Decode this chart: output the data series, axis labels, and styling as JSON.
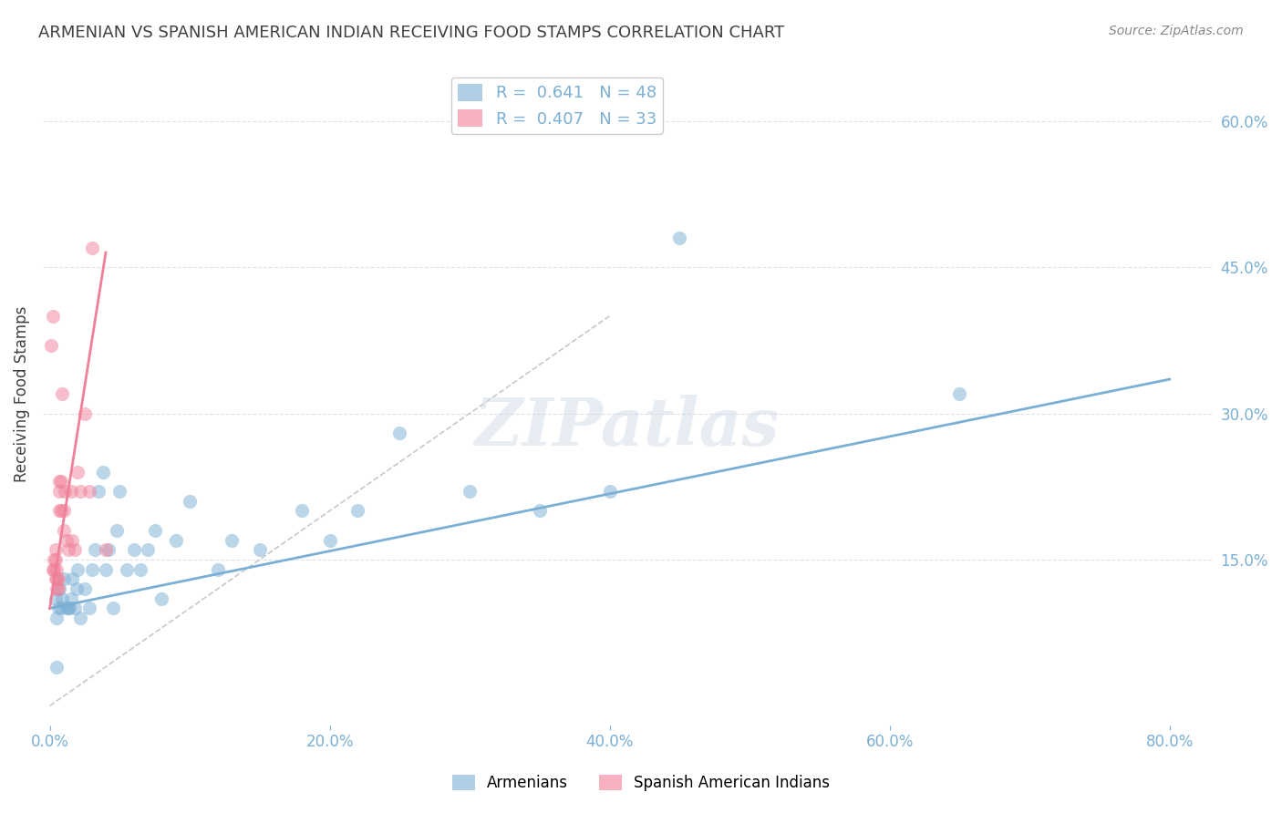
{
  "title": "ARMENIAN VS SPANISH AMERICAN INDIAN RECEIVING FOOD STAMPS CORRELATION CHART",
  "source": "Source: ZipAtlas.com",
  "xlabel_ticks": [
    "0.0%",
    "20.0%",
    "40.0%",
    "60.0%",
    "80.0%"
  ],
  "xlabel_tick_vals": [
    0.0,
    0.2,
    0.4,
    0.6,
    0.8
  ],
  "ylabel": "Receiving Food Stamps",
  "ylabel_right_ticks": [
    "60.0%",
    "45.0%",
    "30.0%",
    "15.0%"
  ],
  "ylabel_right_tick_vals": [
    0.6,
    0.45,
    0.3,
    0.15
  ],
  "xlim": [
    -0.005,
    0.83
  ],
  "ylim": [
    -0.02,
    0.66
  ],
  "watermark": "ZIPatlas",
  "legend": [
    {
      "label": "R =  0.641   N = 48",
      "color": "#a8c4e0"
    },
    {
      "label": "R =  0.407   N = 33",
      "color": "#f0a0b8"
    }
  ],
  "legend_labels": [
    "Armenians",
    "Spanish American Indians"
  ],
  "blue_scatter_x": [
    0.004,
    0.005,
    0.006,
    0.007,
    0.008,
    0.009,
    0.01,
    0.012,
    0.013,
    0.014,
    0.015,
    0.016,
    0.018,
    0.019,
    0.02,
    0.022,
    0.025,
    0.028,
    0.03,
    0.032,
    0.035,
    0.038,
    0.04,
    0.042,
    0.045,
    0.048,
    0.05,
    0.055,
    0.06,
    0.065,
    0.07,
    0.075,
    0.08,
    0.09,
    0.1,
    0.12,
    0.13,
    0.15,
    0.18,
    0.2,
    0.22,
    0.25,
    0.3,
    0.35,
    0.4,
    0.45,
    0.65,
    0.005
  ],
  "blue_scatter_y": [
    0.11,
    0.09,
    0.1,
    0.12,
    0.1,
    0.11,
    0.13,
    0.1,
    0.1,
    0.1,
    0.11,
    0.13,
    0.1,
    0.12,
    0.14,
    0.09,
    0.12,
    0.1,
    0.14,
    0.16,
    0.22,
    0.24,
    0.14,
    0.16,
    0.1,
    0.18,
    0.22,
    0.14,
    0.16,
    0.14,
    0.16,
    0.18,
    0.11,
    0.17,
    0.21,
    0.14,
    0.17,
    0.16,
    0.2,
    0.17,
    0.2,
    0.28,
    0.22,
    0.2,
    0.22,
    0.48,
    0.32,
    0.04
  ],
  "pink_scatter_x": [
    0.002,
    0.003,
    0.003,
    0.004,
    0.004,
    0.004,
    0.005,
    0.005,
    0.005,
    0.006,
    0.006,
    0.007,
    0.007,
    0.007,
    0.008,
    0.008,
    0.009,
    0.01,
    0.01,
    0.011,
    0.012,
    0.013,
    0.015,
    0.016,
    0.018,
    0.02,
    0.022,
    0.025,
    0.028,
    0.03,
    0.04,
    0.001,
    0.002
  ],
  "pink_scatter_y": [
    0.14,
    0.14,
    0.15,
    0.13,
    0.15,
    0.16,
    0.12,
    0.13,
    0.14,
    0.12,
    0.13,
    0.2,
    0.22,
    0.23,
    0.2,
    0.23,
    0.32,
    0.18,
    0.2,
    0.22,
    0.17,
    0.16,
    0.22,
    0.17,
    0.16,
    0.24,
    0.22,
    0.3,
    0.22,
    0.47,
    0.16,
    0.37,
    0.4
  ],
  "blue_line_x": [
    0.0,
    0.8
  ],
  "blue_line_y": [
    0.1,
    0.335
  ],
  "pink_line_x": [
    0.0,
    0.04
  ],
  "pink_line_y": [
    0.1,
    0.465
  ],
  "ref_line_x": [
    0.0,
    0.4
  ],
  "ref_line_y": [
    0.0,
    0.4
  ],
  "blue_color": "#7bafd4",
  "pink_color": "#f08098",
  "ref_line_color": "#c8c8c8",
  "grid_color": "#e0e0e8",
  "title_color": "#404040",
  "axis_label_color": "#7bafd4",
  "background_color": "#ffffff"
}
